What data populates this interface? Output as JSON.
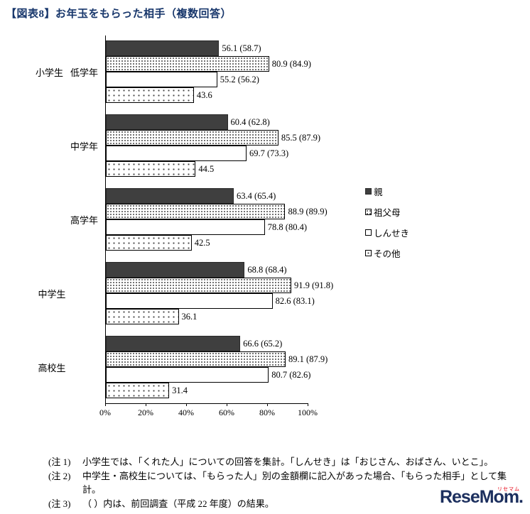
{
  "title": "【図表8】お年玉をもらった相手（複数回答）",
  "chart_data": {
    "type": "bar",
    "orientation": "horizontal",
    "xlim": [
      0,
      100
    ],
    "x_ticks": [
      "0%",
      "20%",
      "40%",
      "60%",
      "80%",
      "100%"
    ],
    "legend_position": "right",
    "grid": false,
    "categories": [
      {
        "prefix": "小学生",
        "label": "低学年",
        "outer": false
      },
      {
        "prefix": "",
        "label": "中学年",
        "outer": false
      },
      {
        "prefix": "",
        "label": "高学年",
        "outer": false
      },
      {
        "prefix": "",
        "label": "中学生",
        "outer": true
      },
      {
        "prefix": "",
        "label": "高校生",
        "outer": true
      }
    ],
    "series": [
      {
        "name": "親",
        "css": "solid",
        "values": [
          56.1,
          60.4,
          63.4,
          68.8,
          66.6
        ],
        "labels": [
          "56.1 (58.7)",
          "60.4 (62.8)",
          "63.4 (65.4)",
          "68.8 (68.4)",
          "66.6 (65.2)"
        ]
      },
      {
        "name": "祖父母",
        "css": "pat-dense",
        "values": [
          80.9,
          85.5,
          88.9,
          91.9,
          89.1
        ],
        "labels": [
          "80.9 (84.9)",
          "85.5 (87.9)",
          "88.9 (89.9)",
          "91.9 (91.8)",
          "89.1 (87.9)"
        ]
      },
      {
        "name": "しんせき",
        "css": "plain",
        "values": [
          55.2,
          69.7,
          78.8,
          82.6,
          80.7
        ],
        "labels": [
          "55.2 (56.2)",
          "69.7 (73.3)",
          "78.8 (80.4)",
          "82.6 (83.1)",
          "80.7 (82.6)"
        ]
      },
      {
        "name": "その他",
        "css": "pat-sparse",
        "values": [
          43.6,
          44.5,
          42.5,
          36.1,
          31.4
        ],
        "labels": [
          "43.6",
          "44.5",
          "42.5",
          "36.1",
          "31.4"
        ]
      }
    ]
  },
  "notes": [
    {
      "label": "(注 1)",
      "text": "小学生では、「くれた人」についての回答を集計。「しんせき」は「おじさん、おばさん、いとこ」。"
    },
    {
      "label": "(注 2)",
      "text": "中学生・高校生については、「もらった人」別の金額欄に記入があった場合、「もらった相手」として集計。"
    },
    {
      "label": "(注 3)",
      "text": "（ ）内は、前回調査（平成 22 年度）の結果。"
    }
  ],
  "logo": {
    "text": "ReseMom.",
    "sub": "リセマム"
  }
}
